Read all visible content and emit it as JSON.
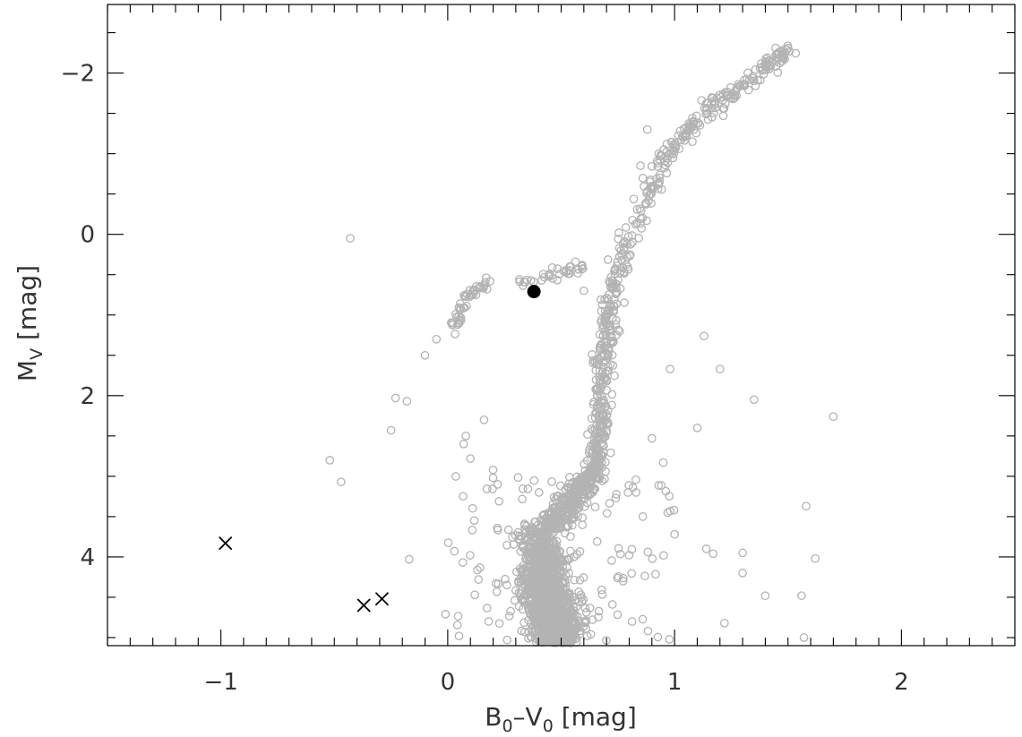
{
  "chart_data": {
    "type": "scatter",
    "xlabel": "B0–V0 [mag]",
    "xlabel_main": "B",
    "xlabel_sub1": "0",
    "xlabel_mid": "–V",
    "xlabel_sub2": "0",
    "xlabel_unit": " [mag]",
    "ylabel": "MV [mag]",
    "ylabel_main": "M",
    "ylabel_sub": "V",
    "ylabel_unit": " [mag]",
    "xlim": [
      -1.5,
      2.5
    ],
    "ylim": [
      5.1,
      -2.85
    ],
    "y_inverted": true,
    "x_ticks": [
      -1,
      0,
      1,
      2
    ],
    "x_tick_labels": [
      "−1",
      "0",
      "1",
      "2"
    ],
    "y_ticks": [
      -2,
      0,
      2,
      4
    ],
    "y_tick_labels": [
      "−2",
      "0",
      "2",
      "4"
    ],
    "grid": false,
    "series": [
      {
        "marker": "open-circle",
        "color": "#b3b3b3",
        "sequences": {
          "main_sequence": {
            "x_range": [
              0.3,
              0.7
            ],
            "y_range": [
              3.6,
              5.1
            ]
          },
          "turnoff_region": {
            "x_range": [
              0.5,
              0.7
            ],
            "y_range": [
              3.0,
              4.0
            ]
          },
          "red_giant_branch": [
            [
              0.64,
              3.0
            ],
            [
              0.67,
              2.5
            ],
            [
              0.68,
              2.0
            ],
            [
              0.69,
              1.5
            ],
            [
              0.71,
              1.0
            ],
            [
              0.74,
              0.6
            ],
            [
              0.8,
              0.1
            ],
            [
              0.87,
              -0.4
            ],
            [
              0.95,
              -0.9
            ],
            [
              1.05,
              -1.3
            ],
            [
              1.18,
              -1.6
            ],
            [
              1.3,
              -1.85
            ],
            [
              1.42,
              -2.1
            ],
            [
              1.5,
              -2.3
            ]
          ],
          "horizontal_branch": [
            [
              0.02,
              1.2
            ],
            [
              0.05,
              0.95
            ],
            [
              0.08,
              0.8
            ],
            [
              0.12,
              0.7
            ],
            [
              0.18,
              0.62
            ],
            [
              0.3,
              0.6
            ],
            [
              0.4,
              0.55
            ],
            [
              0.5,
              0.5
            ],
            [
              0.55,
              0.45
            ],
            [
              0.6,
              0.4
            ]
          ],
          "blue_hb_tail": [
            [
              -0.05,
              1.3
            ],
            [
              -0.1,
              1.5
            ]
          ],
          "scattered_points": [
            [
              -0.43,
              0.05
            ],
            [
              -0.52,
              2.8
            ],
            [
              -0.47,
              3.07
            ],
            [
              -0.23,
              2.03
            ],
            [
              -0.25,
              2.43
            ],
            [
              -0.18,
              2.07
            ],
            [
              -0.17,
              4.03
            ],
            [
              0.08,
              2.5
            ],
            [
              0.1,
              2.78
            ],
            [
              0.07,
              2.6
            ],
            [
              0.16,
              2.3
            ],
            [
              0.2,
              2.92
            ],
            [
              0.22,
              3.1
            ],
            [
              0.6,
              0.7
            ],
            [
              0.85,
              -0.85
            ],
            [
              0.88,
              -1.3
            ],
            [
              0.93,
              -1.0
            ],
            [
              1.13,
              1.26
            ],
            [
              1.2,
              1.67
            ],
            [
              1.35,
              2.05
            ],
            [
              1.7,
              2.26
            ],
            [
              1.1,
              2.4
            ],
            [
              0.98,
              1.67
            ],
            [
              0.95,
              2.83
            ],
            [
              0.9,
              2.53
            ],
            [
              1.58,
              3.37
            ],
            [
              1.62,
              4.02
            ],
            [
              1.4,
              4.48
            ],
            [
              1.56,
              4.48
            ],
            [
              1.14,
              3.9
            ],
            [
              1.17,
              3.96
            ],
            [
              1.3,
              3.95
            ],
            [
              1.3,
              4.2
            ],
            [
              1.22,
              4.82
            ],
            [
              1.82,
              5.07
            ],
            [
              1.57,
              5.0
            ],
            [
              1.0,
              3.72
            ],
            [
              0.97,
              3.45
            ],
            [
              0.86,
              3.5
            ],
            [
              0.83,
              3.2
            ],
            [
              -0.01,
              4.71
            ],
            [
              0.05,
              4.98
            ],
            [
              0.18,
              4.8
            ]
          ]
        }
      },
      {
        "marker": "filled-circle",
        "color": "#000000",
        "points": [
          [
            0.38,
            0.71
          ]
        ]
      },
      {
        "marker": "cross",
        "color": "#000000",
        "points": [
          [
            -0.98,
            3.83
          ],
          [
            -0.37,
            4.6
          ],
          [
            -0.29,
            4.52
          ]
        ]
      }
    ]
  }
}
